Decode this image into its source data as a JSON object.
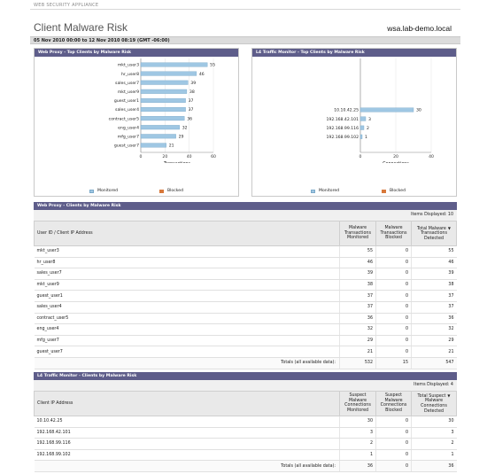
{
  "app": {
    "name": "WEB SECURITY APPLIANCE"
  },
  "page": {
    "title": "Client Malware Risk",
    "hostname": "wsa.lab-demo.local",
    "time_range": "05 Nov 2010 00:00 to 12 Nov 2010 08:19 (GMT -06:00)"
  },
  "colors": {
    "monitored": "#9fc7e3",
    "blocked": "#d8783a",
    "panel_header": "#5e5d8a"
  },
  "legend": {
    "monitored": "Monitored",
    "blocked": "Blocked"
  },
  "charts": {
    "web_proxy": {
      "title": "Web Proxy - Top Clients by Malware Risk"
    },
    "l4": {
      "title": "L4 Traffic Monitor - Top Clients by Malware Risk"
    }
  },
  "chart_data": [
    {
      "type": "bar",
      "orientation": "horizontal",
      "title": "Web Proxy - Top Clients by Malware Risk",
      "xlabel": "Transactions",
      "xlim": [
        0,
        60
      ],
      "xticks": [
        "0",
        "20",
        "40",
        "60"
      ],
      "categories": [
        "mkt_user3",
        "hr_user8",
        "sales_user7",
        "mkt_user9",
        "guest_user1",
        "sales_user4",
        "contract_user5",
        "eng_user4",
        "mfg_user7",
        "guest_user7"
      ],
      "series": [
        {
          "name": "Monitored",
          "values": [
            55,
            46,
            39,
            38,
            37,
            37,
            36,
            32,
            29,
            21
          ]
        },
        {
          "name": "Blocked",
          "values": [
            0,
            0,
            0,
            0,
            0,
            0,
            0,
            0,
            0,
            0
          ]
        }
      ],
      "data_labels": [
        "55",
        "46",
        "39",
        "38",
        "37",
        "37",
        "36",
        "32",
        "29",
        "21"
      ],
      "legend_position": "bottom"
    },
    {
      "type": "bar",
      "orientation": "horizontal",
      "title": "L4 Traffic Monitor - Top Clients by Malware Risk",
      "xlabel": "Connections",
      "xlim": [
        0,
        40
      ],
      "xticks": [
        "0",
        "20",
        "40"
      ],
      "categories": [
        "10.10.42.25",
        "192.168.42.101",
        "192.168.99.116",
        "192.168.99.102"
      ],
      "series": [
        {
          "name": "Monitored",
          "values": [
            30,
            3,
            2,
            1
          ]
        },
        {
          "name": "Blocked",
          "values": [
            0,
            0,
            0,
            0
          ]
        }
      ],
      "data_labels": [
        "30",
        "3",
        "2",
        "1"
      ],
      "legend_position": "bottom"
    }
  ],
  "web_table": {
    "title": "Web Proxy - Clients by Malware Risk",
    "items_label": "Items Displayed: 10",
    "col_id": "User ID / Client IP Address",
    "col_a": [
      "Malware",
      "Transactions",
      "Monitored"
    ],
    "col_b": [
      "Malware",
      "Transactions",
      "Blocked"
    ],
    "col_c": [
      "Total Malware",
      "Transactions",
      "Detected"
    ],
    "rows": [
      {
        "id": "mkt_user3",
        "mon": "55",
        "blk": "0",
        "tot": "55"
      },
      {
        "id": "hr_user8",
        "mon": "46",
        "blk": "0",
        "tot": "46"
      },
      {
        "id": "sales_user7",
        "mon": "39",
        "blk": "0",
        "tot": "39"
      },
      {
        "id": "mkt_user9",
        "mon": "38",
        "blk": "0",
        "tot": "38"
      },
      {
        "id": "guest_user1",
        "mon": "37",
        "blk": "0",
        "tot": "37"
      },
      {
        "id": "sales_user4",
        "mon": "37",
        "blk": "0",
        "tot": "37"
      },
      {
        "id": "contract_user5",
        "mon": "36",
        "blk": "0",
        "tot": "36"
      },
      {
        "id": "eng_user4",
        "mon": "32",
        "blk": "0",
        "tot": "32"
      },
      {
        "id": "mfg_user7",
        "mon": "29",
        "blk": "0",
        "tot": "29"
      },
      {
        "id": "guest_user7",
        "mon": "21",
        "blk": "0",
        "tot": "21"
      }
    ],
    "totals_label": "Totals (all available data):",
    "totals": {
      "mon": "532",
      "blk": "15",
      "tot": "547"
    }
  },
  "l4_table": {
    "title": "L4 Traffic Monitor - Clients by Malware Risk",
    "items_label": "Items Displayed: 4",
    "col_id": "Client IP Address",
    "col_a": [
      "Suspect",
      "Malware",
      "Connections",
      "Monitored"
    ],
    "col_b": [
      "Suspect",
      "Malware",
      "Connections",
      "Blocked"
    ],
    "col_c": [
      "Total Suspect",
      "Malware",
      "Connections",
      "Detected"
    ],
    "rows": [
      {
        "id": "10.10.42.25",
        "mon": "30",
        "blk": "0",
        "tot": "30"
      },
      {
        "id": "192.168.42.101",
        "mon": "3",
        "blk": "0",
        "tot": "3"
      },
      {
        "id": "192.168.99.116",
        "mon": "2",
        "blk": "0",
        "tot": "2"
      },
      {
        "id": "192.168.99.102",
        "mon": "1",
        "blk": "0",
        "tot": "1"
      }
    ],
    "totals_label": "Totals (all available data):",
    "totals": {
      "mon": "36",
      "blk": "0",
      "tot": "36"
    }
  }
}
